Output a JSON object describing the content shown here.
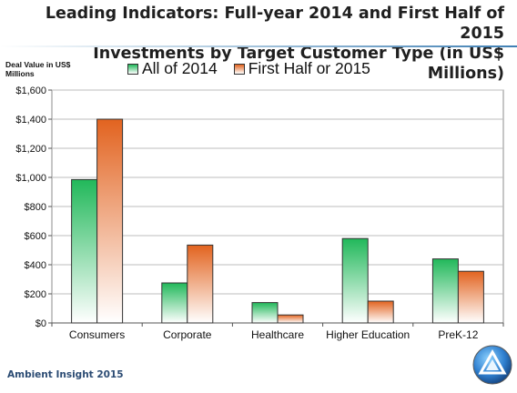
{
  "title_line1": "Leading Indicators: Full-year 2014 and First Half of 2015",
  "title_line2": "Investments by Target Customer Type (in US$ Millions)",
  "footer": "Ambient Insight 2015",
  "colors": {
    "series_2014": "#21b85a",
    "series_h1_2015": "#e2631f",
    "grid": "#bdbdbd"
  },
  "chart_data": {
    "type": "bar",
    "title": "Investments by Target Customer Type (in US$ Millions)",
    "ylabel": "Deal Value in US$ Millions",
    "xlabel": "",
    "categories": [
      "Consumers",
      "Corporate",
      "Healthcare",
      "Higher Education",
      "PreK-12"
    ],
    "series": [
      {
        "name": "All of 2014",
        "values": [
          985,
          275,
          140,
          580,
          440
        ]
      },
      {
        "name": "First Half or 2015",
        "values": [
          1400,
          535,
          55,
          150,
          355
        ]
      }
    ],
    "ylim": [
      0,
      1600
    ],
    "yticks": [
      0,
      200,
      400,
      600,
      800,
      1000,
      1200,
      1400,
      1600
    ],
    "ytick_labels": [
      "$0",
      "$200",
      "$400",
      "$600",
      "$800",
      "$1,000",
      "$1,200",
      "$1,400",
      "$1,600"
    ],
    "grid": true,
    "legend_position": "top"
  }
}
